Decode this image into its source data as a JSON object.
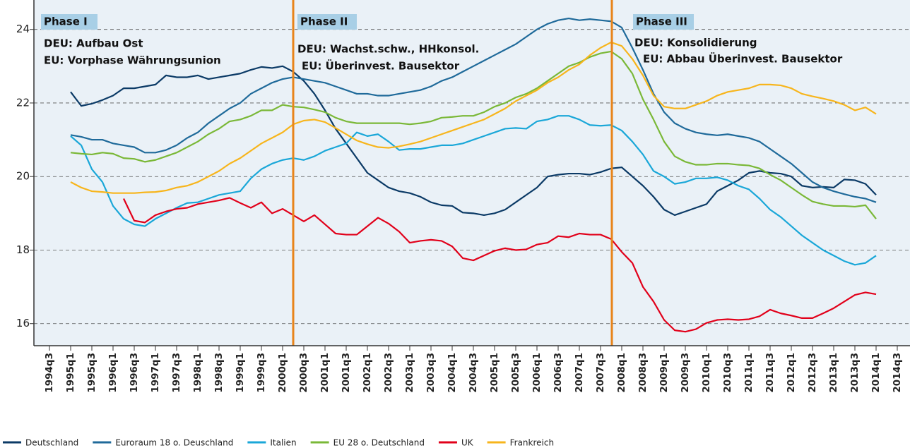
{
  "chart_data": {
    "type": "line",
    "categories": [
      "1994q3",
      null,
      "1995q1",
      null,
      "1995q3",
      null,
      "1996q1",
      null,
      "1996q3",
      null,
      "1997q1",
      null,
      "1997q3",
      null,
      "1998q1",
      null,
      "1998q3",
      null,
      "1999q1",
      null,
      "1999q3",
      null,
      "2000q1",
      null,
      "2000q3",
      null,
      "2001q1",
      null,
      "2001q3",
      null,
      "2002q1",
      null,
      "2002q3",
      null,
      "2003q1",
      null,
      "2003q3",
      null,
      "2004q1",
      null,
      "2004q3",
      null,
      "2005q1",
      null,
      "2005q3",
      null,
      "2006q1",
      null,
      "2006q3",
      null,
      "2007q1",
      null,
      "2007q3",
      null,
      "2008q1",
      null,
      "2008q3",
      null,
      "2009q1",
      null,
      "2009q3",
      null,
      "2010q1",
      null,
      "2010q3",
      null,
      "2011q1",
      null,
      "2011q3",
      null,
      "2012q1",
      null,
      "2012q3",
      null,
      "2013q1",
      null,
      "2013q3",
      null,
      "2014q1",
      null,
      "2014q3"
    ],
    "series": [
      {
        "name": "Deutschland",
        "color": "#0b3a66",
        "values": [
          null,
          null,
          22.3,
          21.92,
          21.98,
          22.08,
          22.2,
          22.4,
          22.4,
          22.45,
          22.5,
          22.75,
          22.7,
          22.7,
          22.75,
          22.65,
          22.7,
          22.75,
          22.8,
          22.9,
          22.98,
          22.95,
          23.0,
          22.85,
          22.6,
          22.25,
          21.8,
          21.3,
          20.9,
          20.5,
          20.1,
          19.9,
          19.7,
          19.6,
          19.55,
          19.45,
          19.3,
          19.22,
          19.2,
          19.02,
          19.0,
          18.95,
          19.0,
          19.1,
          19.3,
          19.5,
          19.7,
          20.0,
          20.05,
          20.08,
          20.08,
          20.05,
          20.12,
          20.22,
          20.25,
          20.0,
          19.75,
          19.45,
          19.1,
          18.95,
          19.05,
          19.15,
          19.25,
          19.6,
          19.75,
          19.9,
          20.1,
          20.15,
          20.1,
          20.08,
          20.0,
          19.75,
          19.7,
          19.72,
          19.7,
          19.92,
          19.9,
          19.8,
          19.5,
          null,
          null
        ]
      },
      {
        "name": "Euroraum 18 o. Deuschland",
        "color": "#1f6a9a",
        "values": [
          null,
          null,
          21.13,
          21.08,
          21.0,
          21.0,
          20.9,
          20.85,
          20.8,
          20.65,
          20.65,
          20.72,
          20.85,
          21.05,
          21.2,
          21.45,
          21.65,
          21.85,
          22.0,
          22.25,
          22.4,
          22.55,
          22.65,
          22.7,
          22.65,
          22.6,
          22.55,
          22.45,
          22.35,
          22.25,
          22.25,
          22.2,
          22.2,
          22.25,
          22.3,
          22.35,
          22.45,
          22.6,
          22.7,
          22.85,
          23.0,
          23.15,
          23.3,
          23.45,
          23.6,
          23.8,
          24.0,
          24.15,
          24.25,
          24.3,
          24.25,
          24.28,
          24.25,
          24.22,
          24.05,
          23.5,
          22.9,
          22.25,
          21.75,
          21.45,
          21.3,
          21.2,
          21.15,
          21.12,
          21.15,
          21.1,
          21.05,
          20.95,
          20.75,
          20.55,
          20.35,
          20.1,
          19.85,
          19.7,
          19.6,
          19.52,
          19.45,
          19.4,
          19.3,
          null,
          null
        ]
      },
      {
        "name": "Italien",
        "color": "#1aa7d8",
        "values": [
          null,
          null,
          21.1,
          20.85,
          20.2,
          19.85,
          19.2,
          18.85,
          18.7,
          18.65,
          18.85,
          19.0,
          19.15,
          19.28,
          19.3,
          19.4,
          19.5,
          19.55,
          19.6,
          19.95,
          20.2,
          20.35,
          20.45,
          20.5,
          20.45,
          20.55,
          20.7,
          20.8,
          20.9,
          21.2,
          21.1,
          21.15,
          20.95,
          20.72,
          20.75,
          20.75,
          20.8,
          20.85,
          20.85,
          20.9,
          21.0,
          21.1,
          21.2,
          21.3,
          21.32,
          21.3,
          21.5,
          21.55,
          21.65,
          21.65,
          21.55,
          21.4,
          21.38,
          21.4,
          21.25,
          20.95,
          20.6,
          20.15,
          20.0,
          19.8,
          19.85,
          19.95,
          19.95,
          19.98,
          19.9,
          19.75,
          19.65,
          19.4,
          19.1,
          18.9,
          18.65,
          18.4,
          18.2,
          18.0,
          17.85,
          17.7,
          17.6,
          17.65,
          17.85,
          null,
          null
        ]
      },
      {
        "name": "EU 28 o. Deutschland",
        "color": "#7ab837",
        "values": [
          null,
          null,
          20.65,
          20.62,
          20.6,
          20.65,
          20.62,
          20.5,
          20.48,
          20.4,
          20.45,
          20.55,
          20.65,
          20.8,
          20.95,
          21.15,
          21.3,
          21.5,
          21.55,
          21.65,
          21.8,
          21.8,
          21.95,
          21.9,
          21.88,
          21.82,
          21.75,
          21.6,
          21.5,
          21.45,
          21.45,
          21.45,
          21.45,
          21.45,
          21.42,
          21.45,
          21.5,
          21.6,
          21.62,
          21.65,
          21.65,
          21.75,
          21.9,
          22.0,
          22.15,
          22.25,
          22.4,
          22.6,
          22.8,
          23.0,
          23.1,
          23.25,
          23.35,
          23.4,
          23.2,
          22.8,
          22.1,
          21.55,
          20.95,
          20.55,
          20.4,
          20.32,
          20.32,
          20.35,
          20.35,
          20.32,
          20.3,
          20.22,
          20.05,
          19.9,
          19.7,
          19.5,
          19.32,
          19.25,
          19.2,
          19.2,
          19.18,
          19.22,
          18.85,
          null,
          null
        ]
      },
      {
        "name": "UK",
        "color": "#e1001a",
        "values": [
          null,
          null,
          null,
          null,
          null,
          null,
          null,
          19.4,
          18.8,
          18.75,
          18.95,
          19.05,
          19.12,
          19.15,
          19.25,
          19.3,
          19.35,
          19.42,
          19.28,
          19.15,
          19.3,
          19.0,
          19.12,
          18.95,
          18.78,
          18.95,
          18.7,
          18.45,
          18.42,
          18.42,
          18.65,
          18.88,
          18.72,
          18.5,
          18.2,
          18.25,
          18.28,
          18.25,
          18.1,
          17.78,
          17.72,
          17.85,
          17.98,
          18.05,
          18.0,
          18.02,
          18.15,
          18.2,
          18.38,
          18.35,
          18.45,
          18.42,
          18.42,
          18.3,
          17.95,
          17.65,
          17.0,
          16.6,
          16.1,
          15.82,
          15.78,
          15.85,
          16.02,
          16.1,
          16.12,
          16.1,
          16.12,
          16.2,
          16.38,
          16.28,
          16.22,
          16.15,
          16.15,
          16.28,
          16.42,
          16.6,
          16.78,
          16.85,
          16.8,
          null,
          null
        ]
      },
      {
        "name": "Frankreich",
        "color": "#f7b51c",
        "values": [
          null,
          null,
          19.85,
          19.7,
          19.6,
          19.58,
          19.55,
          19.55,
          19.55,
          19.57,
          19.58,
          19.62,
          19.7,
          19.75,
          19.85,
          20.0,
          20.15,
          20.35,
          20.5,
          20.7,
          20.9,
          21.05,
          21.2,
          21.42,
          21.52,
          21.55,
          21.48,
          21.32,
          21.15,
          20.98,
          20.88,
          20.8,
          20.78,
          20.82,
          20.88,
          20.95,
          21.05,
          21.15,
          21.25,
          21.35,
          21.45,
          21.55,
          21.7,
          21.85,
          22.05,
          22.2,
          22.35,
          22.55,
          22.7,
          22.9,
          23.05,
          23.3,
          23.5,
          23.65,
          23.55,
          23.2,
          22.75,
          22.2,
          21.9,
          21.85,
          21.85,
          21.95,
          22.05,
          22.2,
          22.3,
          22.35,
          22.4,
          22.5,
          22.5,
          22.48,
          22.4,
          22.25,
          22.18,
          22.12,
          22.05,
          21.95,
          21.8,
          21.88,
          21.7,
          null,
          null
        ]
      }
    ],
    "ylim": [
      15.4,
      24.8
    ],
    "yticks": [
      16,
      18,
      20,
      22,
      24
    ],
    "grid": true,
    "phases": [
      {
        "label": "Phase I",
        "lines": [
          "DEU: Aufbau Ost",
          "EU: Vorphase Währungsunion"
        ]
      },
      {
        "label": "Phase II",
        "lines": [
          "DEU: Wachst.schw., HHkonsol.",
          "EU: Überinvest. Bausektor"
        ]
      },
      {
        "label": "Phase III",
        "lines": [
          "DEU: Konsolidierung",
          "EU: Abbau Überinvest. Bausektor"
        ]
      }
    ]
  }
}
